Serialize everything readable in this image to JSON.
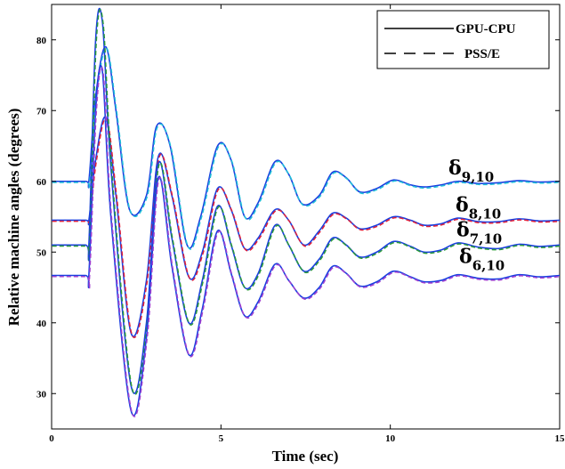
{
  "chart_data": {
    "type": "line",
    "title": "",
    "xlabel": "Time (sec)",
    "ylabel": "Relative machine angles (degrees)",
    "xlim": [
      0,
      15
    ],
    "ylim": [
      25,
      85
    ],
    "xticks": [
      "0",
      "5",
      "10",
      "15"
    ],
    "yticks": [
      "30",
      "40",
      "50",
      "60",
      "70",
      "80"
    ],
    "grid": false,
    "legend_position": "top-right",
    "legend": [
      {
        "label": "GPU-CPU",
        "style": "solid",
        "color": "#000000"
      },
      {
        "label": "PSS/E",
        "style": "dashed",
        "color": "#000000"
      }
    ],
    "series": [
      {
        "base": 60,
        "annotation": {
          "main": "δ",
          "sub": "9,10"
        },
        "solid_color": "#1a3fe0",
        "dashed_color": "#20c0d8",
        "x": [
          0,
          1.0,
          1.1,
          1.3,
          1.6,
          1.9,
          2.3,
          2.8,
          3.1,
          3.5,
          4.0,
          4.4,
          4.9,
          5.3,
          5.7,
          6.1,
          6.6,
          7.0,
          7.4,
          7.9,
          8.3,
          8.7,
          9.1,
          9.6,
          10.1,
          10.6,
          11.0,
          11.5,
          12.0,
          12.6,
          13.2,
          13.8,
          14.4,
          15
        ],
        "y": [
          60,
          60,
          60,
          72,
          79,
          70,
          56,
          58,
          67.8,
          65,
          51,
          55,
          65,
          63,
          55,
          57,
          62.8,
          61,
          56.8,
          58,
          61.3,
          60.5,
          58.5,
          59,
          60.2,
          59.5,
          59.2,
          59.5,
          60,
          59.7,
          59.8,
          60.1,
          59.9,
          60
        ]
      },
      {
        "base": 54.5,
        "annotation": {
          "main": "δ",
          "sub": "8,10"
        },
        "solid_color": "#1a3fe0",
        "dashed_color": "#e0203a",
        "x": [
          0,
          1.0,
          1.1,
          1.3,
          1.6,
          1.9,
          2.35,
          2.8,
          3.15,
          3.55,
          4.05,
          4.45,
          4.9,
          5.3,
          5.7,
          6.1,
          6.6,
          7.0,
          7.45,
          7.9,
          8.3,
          8.7,
          9.1,
          9.6,
          10.1,
          10.6,
          11.0,
          11.5,
          12.0,
          12.6,
          13.2,
          13.8,
          14.4,
          15
        ],
        "y": [
          54.5,
          54.5,
          54.5,
          63,
          69,
          58,
          38.5,
          46,
          63.5,
          58,
          46.5,
          50,
          59,
          56,
          50.5,
          52,
          56,
          54.5,
          51,
          53,
          55.5,
          54.8,
          53.3,
          53.8,
          55,
          54.5,
          53.8,
          54,
          54.8,
          54.3,
          54.3,
          54.7,
          54.4,
          54.5
        ]
      },
      {
        "base": 51,
        "annotation": {
          "main": "δ",
          "sub": "7,10"
        },
        "solid_color": "#1a3fe0",
        "dashed_color": "#2a9a3a",
        "x": [
          0,
          1.0,
          1.1,
          1.3,
          1.5,
          1.75,
          2.35,
          2.8,
          3.15,
          3.55,
          4.05,
          4.45,
          4.9,
          5.3,
          5.7,
          6.1,
          6.6,
          7.0,
          7.45,
          7.9,
          8.3,
          8.7,
          9.1,
          9.6,
          10.1,
          10.6,
          11.0,
          11.5,
          12.0,
          12.6,
          13.2,
          13.8,
          14.4,
          15
        ],
        "y": [
          51,
          51,
          51,
          80,
          82.5,
          62,
          31,
          40,
          62.5,
          52,
          40,
          46,
          56.5,
          51,
          45,
          47,
          53.8,
          51,
          47.3,
          49,
          52,
          51,
          49.3,
          50,
          51.5,
          50.8,
          50,
          50.3,
          51.3,
          50.7,
          50.5,
          51.1,
          50.8,
          51
        ]
      },
      {
        "base": 46.7,
        "annotation": {
          "main": "δ",
          "sub": "6,10"
        },
        "solid_color": "#1a3fe0",
        "dashed_color": "#a040d0",
        "x": [
          0,
          1.0,
          1.1,
          1.3,
          1.5,
          1.75,
          2.35,
          2.8,
          3.15,
          3.55,
          4.05,
          4.45,
          4.9,
          5.3,
          5.7,
          6.1,
          6.6,
          7.0,
          7.45,
          7.9,
          8.3,
          8.7,
          9.1,
          9.6,
          10.1,
          10.6,
          11.0,
          11.5,
          12.0,
          12.6,
          13.2,
          13.8,
          14.4,
          15
        ],
        "y": [
          46.7,
          46.7,
          46.7,
          70,
          75.5,
          55,
          27.5,
          38,
          60.5,
          48,
          35.5,
          42,
          53,
          47,
          41,
          43,
          48.3,
          46,
          43.5,
          45,
          48,
          47,
          45.2,
          45.8,
          47.3,
          46.5,
          45.8,
          46,
          46.8,
          46.3,
          46.2,
          46.8,
          46.5,
          46.7
        ]
      }
    ]
  }
}
